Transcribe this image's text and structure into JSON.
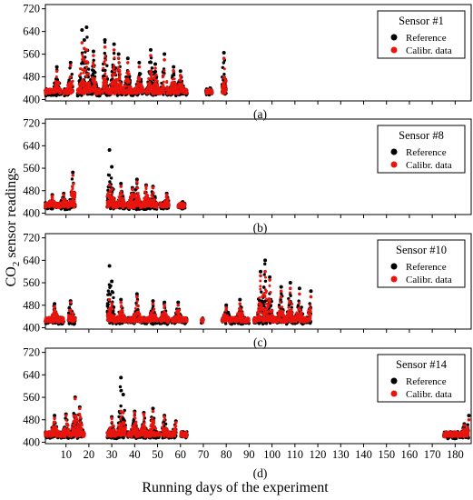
{
  "figure": {
    "ylabel_main": "CO",
    "ylabel_sub": "2",
    "ylabel_rest": " sensor readings",
    "xlabel": "Running days of the experiment"
  },
  "colors": {
    "reference": "#000000",
    "calibrated": "#e8150e",
    "frame": "#000000"
  },
  "chart_data": [
    {
      "type": "scatter",
      "panel_label": "(a)",
      "legend_title": "Sensor #1",
      "legend_placement": "top-right",
      "series_names": [
        "Reference",
        "Calibr. data"
      ],
      "xlim": [
        1,
        187
      ],
      "ylim": [
        395,
        735
      ],
      "yticks": [
        400,
        480,
        560,
        640,
        720
      ],
      "xtick_labels_shown": false,
      "active_intervals": [
        [
          1,
          8
        ],
        [
          9,
          13
        ],
        [
          15,
          25
        ],
        [
          26,
          44
        ],
        [
          45,
          53
        ],
        [
          54,
          63
        ],
        [
          71,
          74
        ],
        [
          78,
          80
        ]
      ],
      "reference_peaks": [
        [
          6,
          515
        ],
        [
          12,
          530
        ],
        [
          17,
          645
        ],
        [
          18,
          610
        ],
        [
          19,
          655
        ],
        [
          22,
          570
        ],
        [
          27,
          610
        ],
        [
          31,
          595
        ],
        [
          33,
          560
        ],
        [
          37,
          545
        ],
        [
          42,
          530
        ],
        [
          47,
          575
        ],
        [
          49,
          525
        ],
        [
          53,
          560
        ],
        [
          57,
          515
        ],
        [
          60,
          500
        ],
        [
          73,
          440
        ],
        [
          79,
          565
        ]
      ],
      "calibrated_peaks": [
        [
          6,
          500
        ],
        [
          12,
          520
        ],
        [
          17,
          600
        ],
        [
          18,
          580
        ],
        [
          19,
          575
        ],
        [
          22,
          555
        ],
        [
          27,
          585
        ],
        [
          31,
          575
        ],
        [
          33,
          545
        ],
        [
          37,
          530
        ],
        [
          42,
          515
        ],
        [
          47,
          555
        ],
        [
          49,
          510
        ],
        [
          53,
          540
        ],
        [
          57,
          500
        ],
        [
          60,
          485
        ],
        [
          73,
          435
        ],
        [
          79,
          545
        ]
      ]
    },
    {
      "type": "scatter",
      "panel_label": "(b)",
      "legend_title": "Sensor #8",
      "legend_placement": "top-right",
      "series_names": [
        "Reference",
        "Calibr. data"
      ],
      "xlim": [
        1,
        187
      ],
      "ylim": [
        395,
        735
      ],
      "yticks": [
        400,
        480,
        560,
        640,
        720
      ],
      "xtick_labels_shown": false,
      "active_intervals": [
        [
          1,
          14
        ],
        [
          28,
          36
        ],
        [
          37,
          50
        ],
        [
          51,
          55
        ],
        [
          59,
          62
        ]
      ],
      "reference_peaks": [
        [
          4,
          465
        ],
        [
          9,
          470
        ],
        [
          13,
          545
        ],
        [
          29,
          625
        ],
        [
          30,
          565
        ],
        [
          34,
          505
        ],
        [
          39,
          490
        ],
        [
          41,
          520
        ],
        [
          45,
          500
        ],
        [
          48,
          495
        ],
        [
          54,
          470
        ],
        [
          61,
          440
        ]
      ],
      "calibrated_peaks": [
        [
          4,
          460
        ],
        [
          9,
          465
        ],
        [
          13,
          535
        ],
        [
          29,
          500
        ],
        [
          30,
          485
        ],
        [
          34,
          495
        ],
        [
          39,
          485
        ],
        [
          41,
          510
        ],
        [
          45,
          495
        ],
        [
          48,
          490
        ],
        [
          54,
          465
        ],
        [
          61,
          435
        ]
      ]
    },
    {
      "type": "scatter",
      "panel_label": "(c)",
      "legend_title": "Sensor #10",
      "legend_placement": "top-right",
      "series_names": [
        "Reference",
        "Calibr. data"
      ],
      "xlim": [
        1,
        187
      ],
      "ylim": [
        395,
        735
      ],
      "yticks": [
        400,
        480,
        560,
        640,
        720
      ],
      "xtick_labels_shown": false,
      "active_intervals": [
        [
          1,
          9
        ],
        [
          11,
          14
        ],
        [
          28,
          36
        ],
        [
          37,
          50
        ],
        [
          51,
          55
        ],
        [
          56,
          63
        ],
        [
          69,
          70
        ],
        [
          78,
          90
        ],
        [
          92,
          117
        ]
      ],
      "reference_peaks": [
        [
          5,
          485
        ],
        [
          12,
          495
        ],
        [
          29,
          620
        ],
        [
          30,
          565
        ],
        [
          34,
          500
        ],
        [
          41,
          520
        ],
        [
          48,
          495
        ],
        [
          53,
          490
        ],
        [
          59,
          490
        ],
        [
          80,
          480
        ],
        [
          86,
          500
        ],
        [
          95,
          600
        ],
        [
          97,
          640
        ],
        [
          99,
          580
        ],
        [
          104,
          545
        ],
        [
          108,
          560
        ],
        [
          112,
          540
        ],
        [
          117,
          530
        ]
      ],
      "calibrated_peaks": [
        [
          5,
          475
        ],
        [
          12,
          490
        ],
        [
          29,
          500
        ],
        [
          30,
          485
        ],
        [
          34,
          490
        ],
        [
          41,
          510
        ],
        [
          48,
          485
        ],
        [
          53,
          480
        ],
        [
          59,
          480
        ],
        [
          80,
          470
        ],
        [
          86,
          485
        ],
        [
          95,
          585
        ],
        [
          97,
          600
        ],
        [
          99,
          570
        ],
        [
          104,
          530
        ],
        [
          108,
          540
        ],
        [
          112,
          520
        ],
        [
          117,
          510
        ]
      ]
    },
    {
      "type": "scatter",
      "panel_label": "(d)",
      "legend_title": "Sensor #14",
      "legend_placement": "top-right",
      "series_names": [
        "Reference",
        "Calibr. data"
      ],
      "xlim": [
        1,
        187
      ],
      "ylim": [
        395,
        735
      ],
      "yticks": [
        400,
        480,
        560,
        640,
        720
      ],
      "xticks": [
        10,
        20,
        30,
        40,
        50,
        60,
        70,
        80,
        90,
        100,
        110,
        120,
        130,
        140,
        150,
        160,
        170,
        180
      ],
      "xtick_labels_shown": true,
      "active_intervals": [
        [
          1,
          18
        ],
        [
          28,
          36
        ],
        [
          37,
          51
        ],
        [
          52,
          58
        ],
        [
          60,
          63
        ],
        [
          175,
          186
        ]
      ],
      "reference_peaks": [
        [
          5,
          495
        ],
        [
          10,
          500
        ],
        [
          14,
          560
        ],
        [
          16,
          525
        ],
        [
          30,
          490
        ],
        [
          34,
          630
        ],
        [
          35,
          570
        ],
        [
          40,
          510
        ],
        [
          44,
          505
        ],
        [
          48,
          520
        ],
        [
          53,
          495
        ],
        [
          58,
          475
        ],
        [
          184,
          465
        ],
        [
          186,
          495
        ]
      ],
      "calibrated_peaks": [
        [
          5,
          485
        ],
        [
          10,
          495
        ],
        [
          14,
          555
        ],
        [
          16,
          520
        ],
        [
          30,
          485
        ],
        [
          34,
          510
        ],
        [
          35,
          505
        ],
        [
          40,
          505
        ],
        [
          44,
          500
        ],
        [
          48,
          510
        ],
        [
          53,
          490
        ],
        [
          58,
          470
        ],
        [
          184,
          460
        ],
        [
          186,
          480
        ]
      ]
    }
  ]
}
